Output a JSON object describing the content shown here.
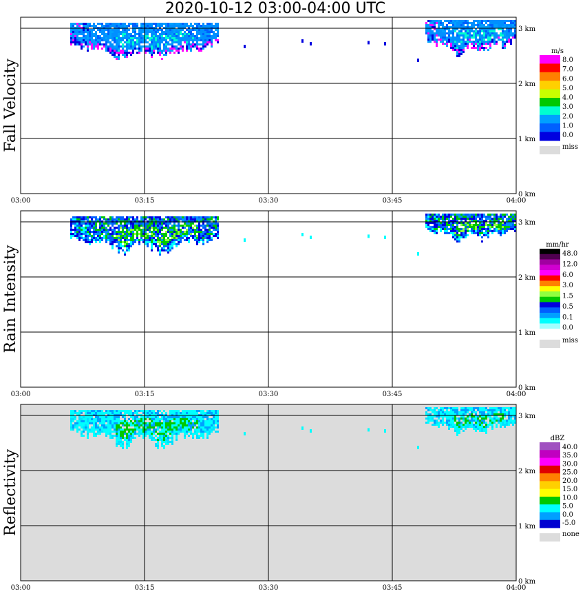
{
  "title": "2020-10-12   03:00-04:00 UTC",
  "x_ticks": [
    "03:00",
    "03:15",
    "03:30",
    "03:45",
    "04:00"
  ],
  "y_ticks": [
    "0 km",
    "1 km",
    "2 km",
    "3 km"
  ],
  "colors": {
    "background": "#ffffff",
    "reflectivity_background": "#dcdcdc",
    "missing": "#dcdcdc"
  },
  "chart_data": [
    {
      "type": "heatmap",
      "panel": "fall_velocity",
      "ylabel": "Fall Velocity",
      "x_range": [
        "03:00",
        "04:00"
      ],
      "y_range_km": [
        0,
        3.2
      ],
      "legend": {
        "unit": "m/s",
        "position": "right",
        "labels": [
          "8.0",
          "7.0",
          "6.0",
          "5.0",
          "4.0",
          "3.0",
          "2.0",
          "1.0",
          "0.0"
        ],
        "missing_label": "miss",
        "colors": [
          "#ff00ff",
          "#ff0000",
          "#ff8000",
          "#ffd000",
          "#c8ff00",
          "#00c800",
          "#00ffd0",
          "#00a0ff",
          "#0060ff",
          "#0000e0"
        ]
      },
      "echoes": [
        {
          "start": "03:06",
          "end": "03:24",
          "height_km": [
            2.35,
            3.1
          ],
          "dominant_value": "1.0-2.0 m/s"
        },
        {
          "start": "03:49",
          "end": "04:00",
          "height_km": [
            2.45,
            3.15
          ],
          "dominant_value": "1.0-2.0 m/s"
        }
      ]
    },
    {
      "type": "heatmap",
      "panel": "rain_intensity",
      "ylabel": "Rain Intensity",
      "x_range": [
        "03:00",
        "04:00"
      ],
      "y_range_km": [
        0,
        3.2
      ],
      "legend": {
        "unit": "mm/hr",
        "position": "right",
        "labels": [
          "48.0",
          "12.0",
          "6.0",
          "3.0",
          "1.5",
          "0.5",
          "0.1",
          "0.0"
        ],
        "missing_label": "miss",
        "colors": [
          "#000000",
          "#500050",
          "#a000a0",
          "#d000d0",
          "#ff00ff",
          "#ff0000",
          "#ff8000",
          "#ffff00",
          "#90ff40",
          "#00c800",
          "#0000e0",
          "#0060ff",
          "#00a0ff",
          "#00ffff",
          "#a0ffff",
          "#ffffff"
        ]
      },
      "echoes": [
        {
          "start": "03:06",
          "end": "03:24",
          "height_km": [
            2.35,
            3.1
          ],
          "dominant_value": "0.5-1.5 mm/hr"
        },
        {
          "start": "03:49",
          "end": "04:00",
          "height_km": [
            2.6,
            3.15
          ],
          "dominant_value": "0.1-0.5 mm/hr"
        }
      ]
    },
    {
      "type": "heatmap",
      "panel": "reflectivity",
      "ylabel": "Reflectivity",
      "x_range": [
        "03:00",
        "04:00"
      ],
      "y_range_km": [
        0,
        3.2
      ],
      "legend": {
        "unit": "dBZ",
        "position": "right",
        "labels": [
          "40.0",
          "35.0",
          "30.0",
          "25.0",
          "20.0",
          "15.0",
          "10.0",
          "5.0",
          "0.0",
          "-5.0"
        ],
        "missing_label": "none",
        "colors": [
          "#a050c0",
          "#c000c0",
          "#ff00ff",
          "#e00000",
          "#ff8000",
          "#ffd000",
          "#ffff00",
          "#00c800",
          "#00ffff",
          "#00a0ff",
          "#0000d0"
        ]
      },
      "echoes": [
        {
          "start": "03:06",
          "end": "03:24",
          "height_km": [
            2.35,
            3.1
          ],
          "dominant_value": "10.0-15.0 dBZ"
        },
        {
          "start": "03:49",
          "end": "04:00",
          "height_km": [
            2.6,
            3.15
          ],
          "dominant_value": "5.0-10.0 dBZ"
        }
      ]
    }
  ]
}
